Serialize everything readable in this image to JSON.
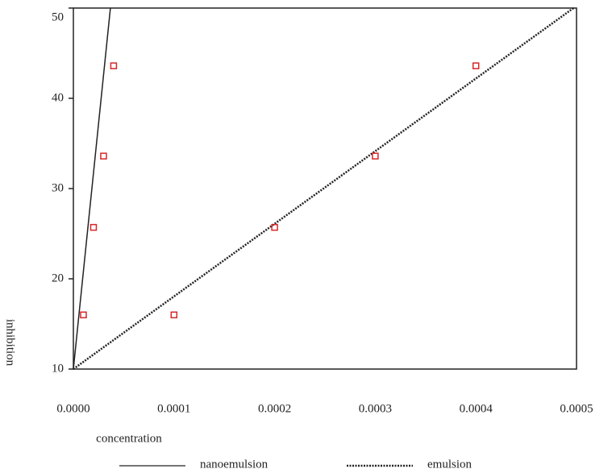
{
  "chart_data": {
    "type": "scatter",
    "x_label": "concentration",
    "y_label": "inhibition",
    "xlim": [
      0,
      0.0005
    ],
    "ylim": [
      10,
      50
    ],
    "xticks": [
      {
        "value": 0,
        "label": "0.0000"
      },
      {
        "value": 0.0001,
        "label": "0.0001"
      },
      {
        "value": 0.0002,
        "label": "0.0002"
      },
      {
        "value": 0.0003,
        "label": "0.0003"
      },
      {
        "value": 0.0004,
        "label": "0.0004"
      },
      {
        "value": 0.0005,
        "label": "0.0005"
      }
    ],
    "yticks": [
      10,
      20,
      30,
      40,
      50
    ],
    "series": [
      {
        "name": "nanoemulsion",
        "style": "solid",
        "color": "#222222",
        "x": [
          0,
          3.68e-05
        ],
        "values": [
          10,
          50
        ]
      },
      {
        "name": "emulsion",
        "style": "dotted",
        "color": "#222222",
        "x": [
          0,
          0.000497
        ],
        "values": [
          10,
          50
        ]
      }
    ],
    "points": [
      {
        "color": "#d62728",
        "x": [
          1e-05,
          2e-05,
          3e-05,
          4e-05
        ],
        "values": [
          16,
          25.7,
          33.6,
          43.6
        ]
      },
      {
        "color": "#d62728",
        "x": [
          0.0001,
          0.0002,
          0.0003,
          0.0004
        ],
        "values": [
          16,
          25.7,
          33.6,
          43.6
        ]
      }
    ]
  }
}
